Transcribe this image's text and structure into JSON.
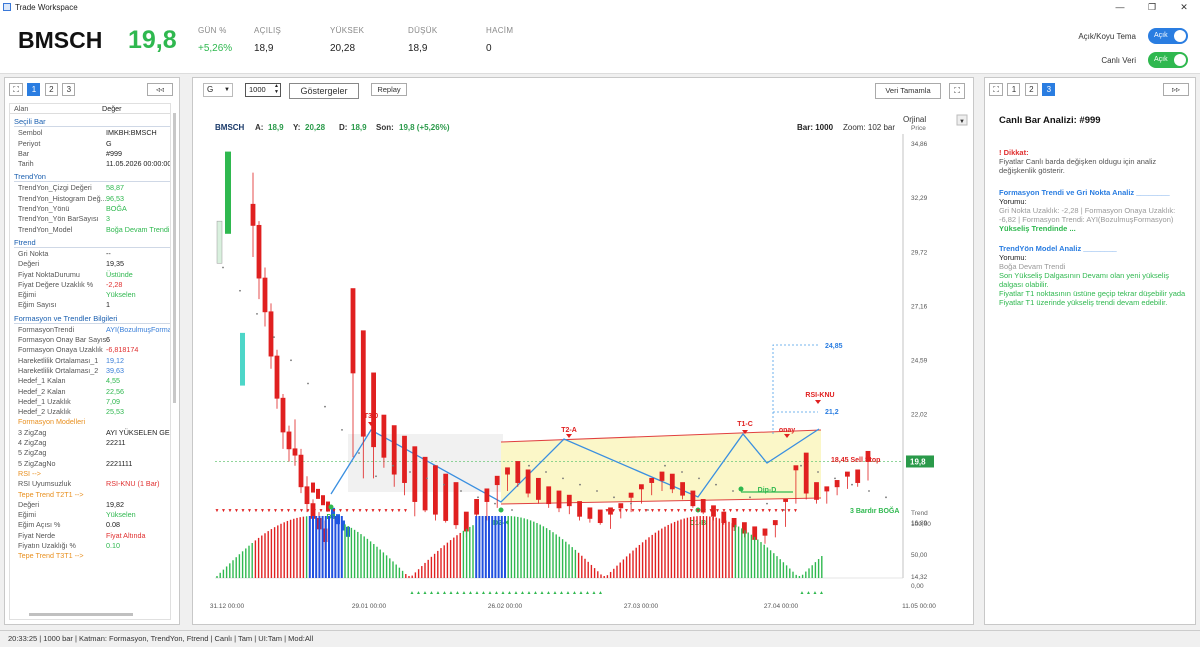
{
  "window": {
    "title": "Trade Workspace",
    "min_icon": "minimize-icon",
    "max_icon": "maximize-icon",
    "close_icon": "close-icon"
  },
  "header": {
    "symbol": "BMSCH",
    "price": "19,8",
    "stats": [
      {
        "label": "GÜN %",
        "value": "+5,26%",
        "color": "#2fb84f"
      },
      {
        "label": "AÇILIŞ",
        "value": "18,9"
      },
      {
        "label": "YÜKSEK",
        "value": "20,28"
      },
      {
        "label": "DÜŞÜK",
        "value": "18,9"
      },
      {
        "label": "HACİM",
        "value": "0"
      }
    ],
    "theme_label": "Açık/Koyu Tema",
    "theme_toggle": "Açık",
    "live_label": "Canlı Veri",
    "live_toggle": "Açık"
  },
  "left": {
    "tabs": [
      "1",
      "2",
      "3"
    ],
    "collapse": "◃◃",
    "col_key": "Alan",
    "col_val": "Değer",
    "sections": [
      {
        "title": "Seçili Bar",
        "rows": [
          [
            "Sembol",
            "IMKBH:BMSCH",
            ""
          ],
          [
            "Periyot",
            "G",
            ""
          ],
          [
            "Bar",
            "#999",
            ""
          ],
          [
            "Tarih",
            "11.05.2026 00:00:00",
            ""
          ]
        ]
      },
      {
        "title": "TrendYon",
        "rows": [
          [
            "TrendYon_Çizgi Değeri",
            "58,87",
            "#2fb84f"
          ],
          [
            "TrendYon_Histogram Değ...",
            "96,53",
            "#2fb84f"
          ],
          [
            "TrendYon_Yönü",
            "BOĞA",
            "#2fb84f"
          ],
          [
            "TrendYon_Yön BarSayısı",
            "3",
            "#2fb84f"
          ],
          [
            "TrendYon_Model",
            "Boğa Devam Trendi",
            "#2fb84f"
          ]
        ]
      },
      {
        "title": "Ftrend",
        "rows": [
          [
            "Gri Nokta",
            "--",
            ""
          ],
          [
            "Değeri",
            "19,35",
            ""
          ],
          [
            "Fiyat NoktaDurumu",
            "Üstünde",
            "#2fb84f"
          ],
          [
            "Fiyat Değere Uzaklık %",
            "-2,28",
            "#e03030"
          ],
          [
            "Eğimi",
            "Yükselen",
            "#2fb84f"
          ],
          [
            "Eğim Sayısı",
            "1",
            ""
          ]
        ]
      },
      {
        "title": "Formasyon ve Trendler Bilgileri",
        "rows": [
          [
            "FormasyonTrendi",
            "AYI(BozulmuşFormasyo",
            "#3a7fd8"
          ],
          [
            "Formasyon Onay Bar Sayısı",
            "6",
            ""
          ],
          [
            "Formasyon Onaya Uzaklık",
            "-6,818174",
            "#e03030"
          ],
          [
            "Hareketlilik Ortalaması_1",
            "19,12",
            "#3a7fd8"
          ],
          [
            "Hareketlilik Ortalaması_2",
            "39,63",
            "#3a7fd8"
          ],
          [
            "Hedef_1 Kalan",
            "4,55",
            "#2fb84f"
          ],
          [
            "Hedef_2 Kalan",
            "22,56",
            "#2fb84f"
          ],
          [
            "Hedef_1 Uzaklık",
            "7,09",
            "#2fb84f"
          ],
          [
            "Hedef_2 Uzaklık",
            "25,53",
            "#2fb84f"
          ],
          [
            "Formasyon Modelleri",
            "",
            "#e89020"
          ],
          [
            "3 ZigZag",
            "AYI YÜKSELEN GENİŞ",
            ""
          ],
          [
            "4 ZigZag",
            "22211",
            ""
          ],
          [
            "5 ZigZag",
            "",
            ""
          ],
          [
            "5 ZigZagNo",
            "2221111",
            ""
          ],
          [
            "RSI -->",
            "",
            "#e89020"
          ],
          [
            "RSI Uyumsuzluk",
            "RSI-KNU (1 Bar)",
            "#e03030"
          ],
          [
            "Tepe Trend T2T1 -->",
            "",
            "#e89020"
          ],
          [
            "Değeri",
            "19,82",
            ""
          ],
          [
            "Eğimi",
            "Yükselen",
            "#2fb84f"
          ],
          [
            "Eğim Açısı %",
            "0.08",
            ""
          ],
          [
            "Fiyat Nerde",
            "Fiyat Altında",
            "#e03030"
          ],
          [
            "Fiyatın Uzaklığı %",
            "0.10",
            "#2fb84f"
          ],
          [
            "Tepe Trend T3T1 -->",
            "",
            "#e89020"
          ]
        ]
      }
    ]
  },
  "toolbar": {
    "period": "G",
    "bars": "1000",
    "indicators": "Göstergeler",
    "replay": "Replay",
    "complete": "Veri Tamamla"
  },
  "chart_info": {
    "symbol": "BMSCH",
    "a_label": "A:",
    "a": "18,9",
    "y_label": "Y:",
    "y": "20,28",
    "d_label": "D:",
    "d": "18,9",
    "son_label": "Son:",
    "son": "19,8 (+5,26%)",
    "bar": "Bar: 1000",
    "zoom": "Zoom: 102 bar",
    "scale": "Orjinal",
    "price_axis_title": "Price",
    "trend_axis_title": "Trend"
  },
  "chart_data": {
    "type": "candlestick",
    "y_ticks": [
      "34,86",
      "32,29",
      "29,72",
      "27,16",
      "24,59",
      "22,02",
      "19,45",
      "16,89",
      "14,32"
    ],
    "x_ticks": [
      "31.12 00:00",
      "29.01 00:00",
      "26.02 00:00",
      "27.03 00:00",
      "27.04 00:00",
      "11.05 00:00"
    ],
    "last_price": "19,8",
    "labels": [
      "T3-0",
      "T2-A",
      "T1-C",
      "D3",
      "D2-X",
      "D1-B",
      "Dip-D",
      "onay",
      "RSI-KNU"
    ],
    "target1": "24,85",
    "target2": "21,2",
    "sell_stop": "18,45 Sell Stop",
    "osc_ticks": [
      "100,00",
      "50,00",
      "0,00"
    ],
    "osc_label": "3 Bardır BOĞA"
  },
  "right": {
    "tabs": [
      "1",
      "2",
      "3"
    ],
    "expand": "▹▹",
    "title": "Canlı Bar Analizi: #999",
    "warn_title": "! Dikkat:",
    "warn_text": "Fiyatlar Canlı barda değişken oldugu için analiz değişkenlik gösterir.",
    "sec1_title": "Formasyon Trendi ve Gri Nokta Analiz ________",
    "sec1_sub": "Yorumu:",
    "sec1_text": "Gri Nokta Uzaklık: -2,28 | Formasyon Onaya Uzaklık: -6,82 | Formasyon Trendi: AYI(BozulmuşFormasyon)",
    "sec1_result": "Yükseliş Trendinde ...",
    "sec2_title": "TrendYön Model Analiz ________",
    "sec2_sub": "Yorumu:",
    "sec2_model": "Boğa Devam Trendi",
    "sec2_l1": "Son Yükseliş Dalgasının Devamı olan yeni yükseliş dalgası olabilir.",
    "sec2_l2": "Fiyatlar T1 noktasının üstüne geçip tekrar düşebilir yada",
    "sec2_l3": "Fiyatlar T1 üzerinde yükseliş trendi devam edebilir."
  },
  "status": "20:33:25 | 1000 bar | Katman: Formasyon, TrendYon, Ftrend | Canlı | Tam | UI:Tam | Mod:All"
}
